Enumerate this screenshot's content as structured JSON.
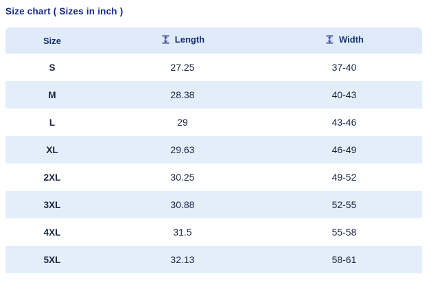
{
  "page": {
    "title": "Size chart ( Sizes in inch )"
  },
  "table": {
    "headers": [
      {
        "label": "Size",
        "icon": null
      },
      {
        "label": "Length",
        "icon": "vertical-measure-icon"
      },
      {
        "label": "Width",
        "icon": "vertical-measure-icon"
      }
    ],
    "rows": [
      {
        "size": "S",
        "length": "27.25",
        "width": "37-40"
      },
      {
        "size": "M",
        "length": "28.38",
        "width": "40-43"
      },
      {
        "size": "L",
        "length": "29",
        "width": "43-46"
      },
      {
        "size": "XL",
        "length": "29.63",
        "width": "46-49"
      },
      {
        "size": "2XL",
        "length": "30.25",
        "width": "49-52"
      },
      {
        "size": "3XL",
        "length": "30.88",
        "width": "52-55"
      },
      {
        "size": "4XL",
        "length": "31.5",
        "width": "55-58"
      },
      {
        "size": "5XL",
        "length": "32.13",
        "width": "58-61"
      }
    ]
  },
  "colors": {
    "title_text": "#162987",
    "header_text": "#15306e",
    "body_text": "#1b2542",
    "header_bg": "#dfeafa",
    "row_alt_bg": "#e3eefb",
    "row_bg": "#ffffff",
    "icon": "#4b5a9c"
  },
  "chart_data": {
    "type": "table",
    "title": "Size chart ( Sizes in inch )",
    "units": "inch",
    "columns": [
      "Size",
      "Length",
      "Width"
    ],
    "rows": [
      [
        "S",
        27.25,
        "37-40"
      ],
      [
        "M",
        28.38,
        "40-43"
      ],
      [
        "L",
        29,
        "43-46"
      ],
      [
        "XL",
        29.63,
        "46-49"
      ],
      [
        "2XL",
        30.25,
        "49-52"
      ],
      [
        "3XL",
        30.88,
        "52-55"
      ],
      [
        "4XL",
        31.5,
        "55-58"
      ],
      [
        "5XL",
        32.13,
        "58-61"
      ]
    ]
  }
}
